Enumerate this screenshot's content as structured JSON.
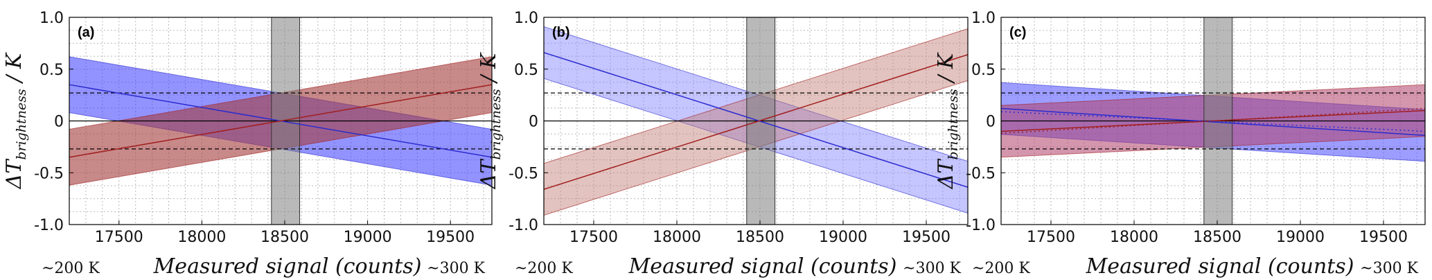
{
  "figure": {
    "ylabel": {
      "main": "ΔT",
      "sub": "brightness",
      "suffix": " / K"
    },
    "xlabel": "Measured signal (counts)",
    "x_left_note": "~200 K",
    "x_right_note": "~300 K"
  },
  "chart_data": [
    {
      "type": "line",
      "panel": "(a)",
      "xlim": [
        17200,
        19750
      ],
      "ylim": [
        -1.0,
        1.0
      ],
      "x_ticks": [
        17500,
        18000,
        18500,
        19000,
        19500
      ],
      "x_tick_labels": [
        "17500",
        "18000",
        "18500",
        "19000",
        "19500"
      ],
      "y_ticks": [
        -1.0,
        -0.5,
        0,
        0.5,
        1.0
      ],
      "y_tick_labels": [
        "-1.0",
        "-0.5",
        "0",
        "0.5",
        "1.0"
      ],
      "grid": true,
      "reference_band_x": [
        18420,
        18590
      ],
      "dashed_lines_y": [
        0.27,
        -0.27
      ],
      "zero_line": true,
      "series": [
        {
          "color": "#2b2bcf",
          "fill": "#3b3bff",
          "fill_opacity": 0.55,
          "x": [
            17200,
            19750
          ],
          "center": [
            0.35,
            -0.35
          ],
          "upper": [
            0.62,
            -0.08
          ],
          "lower": [
            0.08,
            -0.62
          ]
        },
        {
          "color": "#a01e1e",
          "fill": "#a43a3a",
          "fill_opacity": 0.6,
          "x": [
            17200,
            19750
          ],
          "center": [
            -0.35,
            0.35
          ],
          "upper": [
            -0.08,
            0.62
          ],
          "lower": [
            -0.62,
            0.08
          ]
        }
      ]
    },
    {
      "type": "line",
      "panel": "(b)",
      "xlim": [
        17200,
        19750
      ],
      "ylim": [
        -1.0,
        1.0
      ],
      "x_ticks": [
        17500,
        18000,
        18500,
        19000,
        19500
      ],
      "x_tick_labels": [
        "17500",
        "18000",
        "18500",
        "19000",
        "19500"
      ],
      "y_ticks": [
        -1.0,
        -0.5,
        0,
        0.5,
        1.0
      ],
      "y_tick_labels": [
        "-1.0",
        "-0.5",
        "0",
        "0.5",
        "1.0"
      ],
      "grid": true,
      "reference_band_x": [
        18420,
        18590
      ],
      "dashed_lines_y": [
        0.27,
        -0.27
      ],
      "zero_line": true,
      "series": [
        {
          "color": "#2b2bcf",
          "fill": "#7f7fff",
          "fill_opacity": 0.45,
          "x": [
            17200,
            19750
          ],
          "center": [
            0.66,
            -0.64
          ],
          "upper": [
            0.91,
            -0.39
          ],
          "lower": [
            0.41,
            -0.89
          ]
        },
        {
          "color": "#a01e1e",
          "fill": "#c07a70",
          "fill_opacity": 0.45,
          "x": [
            17200,
            19750
          ],
          "center": [
            -0.66,
            0.64
          ],
          "upper": [
            -0.41,
            0.89
          ],
          "lower": [
            -0.91,
            0.39
          ]
        }
      ]
    },
    {
      "type": "line",
      "panel": "(c)",
      "xlim": [
        17200,
        19750
      ],
      "ylim": [
        -1.0,
        1.0
      ],
      "x_ticks": [
        17500,
        18000,
        18500,
        19000,
        19500
      ],
      "x_tick_labels": [
        "17500",
        "18000",
        "18500",
        "19000",
        "19500"
      ],
      "y_ticks": [
        -1.0,
        -0.5,
        0,
        0.5,
        1.0
      ],
      "y_tick_labels": [
        "-1.0",
        "-0.5",
        "0",
        "0.5",
        "1.0"
      ],
      "grid": true,
      "reference_band_x": [
        18420,
        18590
      ],
      "dashed_lines_y": [
        0.27,
        -0.27
      ],
      "zero_line": true,
      "series": [
        {
          "color": "#2b2bcf",
          "fill": "#3b3bff",
          "fill_opacity": 0.5,
          "x": [
            17200,
            19750
          ],
          "center": [
            0.12,
            -0.14
          ],
          "upper": [
            0.37,
            0.11
          ],
          "lower": [
            -0.13,
            -0.39
          ]
        },
        {
          "color": "#a01e1e",
          "fill": "#b0406a",
          "fill_opacity": 0.55,
          "x": [
            17200,
            19750
          ],
          "center": [
            -0.1,
            0.1
          ],
          "upper": [
            0.15,
            0.35
          ],
          "lower": [
            -0.35,
            -0.15
          ]
        },
        {
          "color": "#a01e1e",
          "dotted": true,
          "x": [
            17200,
            19750
          ],
          "center": [
            -0.12,
            0.12
          ]
        },
        {
          "color": "#2b2bcf",
          "dotted": true,
          "x": [
            17200,
            19750
          ],
          "center": [
            0.09,
            -0.1
          ]
        }
      ]
    }
  ]
}
